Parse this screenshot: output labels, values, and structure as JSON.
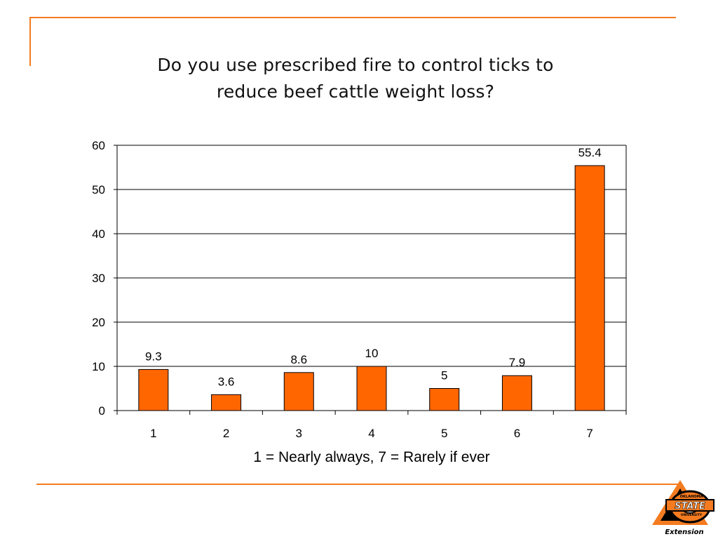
{
  "slide": {
    "title_line1": "Do you use prescribed fire to control ticks to",
    "title_line2": "reduce beef cattle weight loss?",
    "accent_color": "#f47b20"
  },
  "logo": {
    "text_top": "OKLAHOMA",
    "text_main": "STATE",
    "text_sub": "UNIVERSITY",
    "text_bottom": "Extension",
    "colors": {
      "orange": "#f47b20",
      "black": "#000000"
    }
  },
  "chart_data": {
    "type": "bar",
    "title": "Do you use prescribed fire to control ticks to reduce beef cattle weight loss?",
    "xlabel": "1 = Nearly always, 7 = Rarely if ever",
    "ylabel": "",
    "categories": [
      "1",
      "2",
      "3",
      "4",
      "5",
      "6",
      "7"
    ],
    "values": [
      9.3,
      3.6,
      8.6,
      10,
      5,
      7.9,
      55.4
    ],
    "data_labels": [
      "9.3",
      "3.6",
      "8.6",
      "10",
      "5",
      "7.9",
      "55.4"
    ],
    "ylim": [
      0,
      60
    ],
    "yticks": [
      0,
      10,
      20,
      30,
      40,
      50,
      60
    ],
    "grid": true,
    "bar_color": "#ff6600",
    "bar_edge_color": "#000000"
  }
}
